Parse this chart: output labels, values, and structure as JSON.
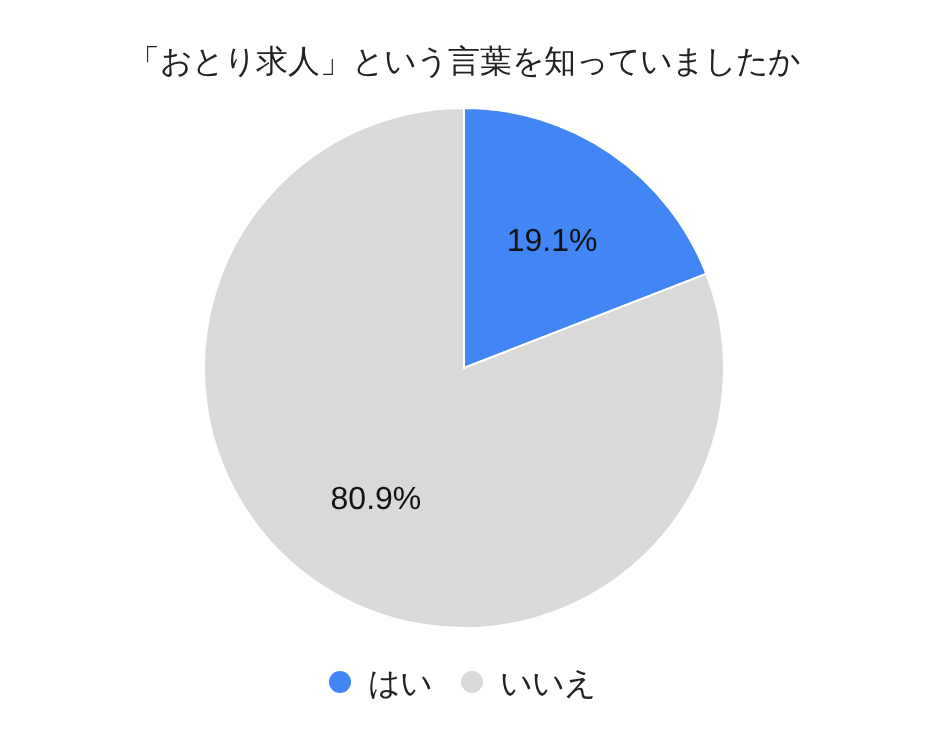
{
  "chart_data": {
    "type": "pie",
    "title": "「おとり求人」という言葉を知っていましたか",
    "categories": [
      "はい",
      "いいえ"
    ],
    "values": [
      19.1,
      80.9
    ],
    "value_labels": [
      "19.1%",
      "80.9%"
    ],
    "colors": [
      "#4285f4",
      "#d9d9d9"
    ],
    "legend": "bottom"
  }
}
